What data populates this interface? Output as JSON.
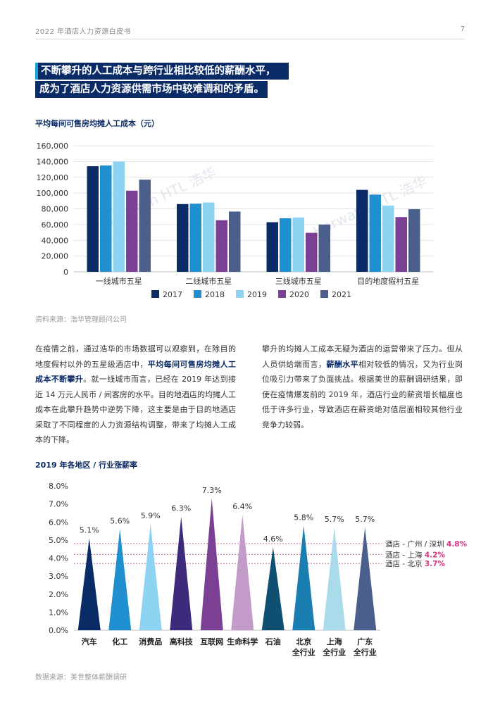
{
  "header": {
    "doc_title": "2022 年酒店人力资源白皮书",
    "page_number": "7"
  },
  "headline": {
    "line1": "不断攀升的人工成本与跨行业相比较低的薪酬水平，",
    "line2": "成为了酒店人力资源供需市场中较难调和的矛盾。"
  },
  "chart1_title": "平均每间可售房均摊人工成本（元）",
  "chart1_source": "资料来源：浩华管理顾问公司",
  "watermark": "Horwath HTL 浩华",
  "body": {
    "left_p1": "在疫情之前，通过浩华的市场数据可以观察到，在除目的地度假村以外的五星级酒店中，",
    "left_bold": "平均每间可售房均摊人工成本不断攀升",
    "left_p2": "。就一线城市而言，已经在 2019 年达到接近 14 万元人民币 / 间客房的水平。目的地酒店的均摊人工成本在此攀升趋势中逆势下降，这主要是由于目的地酒店采取了不同程度的人力资源结构调整，带来了均摊人工成本的下降。",
    "right_p1": "攀升的均摊人工成本无疑为酒店的运营带来了压力。但从人员供给端而言，",
    "right_bold": "薪酬水平",
    "right_p2": "相对较低的情况，又为行业岗位吸引力带来了负面挑战。根据美世的薪酬调研结果，即使在疫情爆发前的 2019 年，酒店行业的薪资增长幅度也低于许多行业，导致酒店在薪资绝对值层面相较其他行业竞争力较弱。"
  },
  "chart2_title": "2019 年各地区 / 行业涨薪率",
  "chart2_source": "数据来源：美世整体薪酬调研",
  "colors": {
    "navy": "#0b2b66",
    "blue": "#1f8fd0",
    "light_blue": "#8fd3f3",
    "purple": "#7b3f93",
    "slate": "#4a5f8c",
    "highlight": "#d6337f"
  },
  "chart_data": [
    {
      "type": "bar",
      "title": "平均每间可售房均摊人工成本（元）",
      "categories": [
        "一线城市五星",
        "二线城市五星",
        "三线城市五星",
        "目的地度假村五星"
      ],
      "series": [
        {
          "name": "2017",
          "color": "#0b2b66",
          "values": [
            134000,
            86000,
            63000,
            104000
          ]
        },
        {
          "name": "2018",
          "color": "#1f8fd0",
          "values": [
            135000,
            86500,
            68000,
            98000
          ]
        },
        {
          "name": "2019",
          "color": "#8fd3f3",
          "values": [
            140000,
            88000,
            69000,
            84000
          ]
        },
        {
          "name": "2020",
          "color": "#7b3f93",
          "values": [
            103000,
            65500,
            49500,
            69500
          ]
        },
        {
          "name": "2021",
          "color": "#4a5f8c",
          "values": [
            117000,
            76500,
            60000,
            79500
          ]
        }
      ],
      "ylim": [
        0,
        160000
      ],
      "yticks": [
        "0",
        "20,000",
        "40,000",
        "60,000",
        "80,000",
        "100,000",
        "120,000",
        "140,000",
        "160,000"
      ],
      "grid": true,
      "legend": "bottom"
    },
    {
      "type": "bar",
      "title": "2019 年各地区 / 行业涨薪率",
      "categories": [
        {
          "line1": "汽车",
          "line2": ""
        },
        {
          "line1": "化工",
          "line2": ""
        },
        {
          "line1": "消费品",
          "line2": ""
        },
        {
          "line1": "高科技",
          "line2": ""
        },
        {
          "line1": "互联网",
          "line2": ""
        },
        {
          "line1": "生命科学",
          "line2": ""
        },
        {
          "line1": "石油",
          "line2": ""
        },
        {
          "line1": "北京",
          "line2": "全行业"
        },
        {
          "line1": "上海",
          "line2": "全行业"
        },
        {
          "line1": "广东",
          "line2": "全行业"
        }
      ],
      "values": [
        5.1,
        5.6,
        5.9,
        6.3,
        7.3,
        6.4,
        4.6,
        5.8,
        5.7,
        5.7
      ],
      "value_labels": [
        "5.1%",
        "5.6%",
        "5.9%",
        "6.3%",
        "7.3%",
        "6.4%",
        "4.6%",
        "5.8%",
        "5.7%",
        "5.7%"
      ],
      "colors": [
        "#0b2b66",
        "#1f8fd0",
        "#8fd3f3",
        "#3d2a7a",
        "#7b3f93",
        "#c39bc9",
        "#0e4f72",
        "#1a7fb0",
        "#a9dbea",
        "#4a5f8c"
      ],
      "ylim": [
        0,
        8
      ],
      "yticks": [
        "0.0%",
        "1.0%",
        "2.0%",
        "3.0%",
        "4.0%",
        "5.0%",
        "6.0%",
        "7.0%",
        "8.0%"
      ],
      "reference_lines": [
        {
          "label": "酒店 - 广州 / 深圳",
          "value_label": "4.8%",
          "value": 4.8
        },
        {
          "label": "酒店 - 上海",
          "value_label": "4.2%",
          "value": 4.2
        },
        {
          "label": "酒店 - 北京",
          "value_label": "3.7%",
          "value": 3.7
        }
      ]
    }
  ]
}
